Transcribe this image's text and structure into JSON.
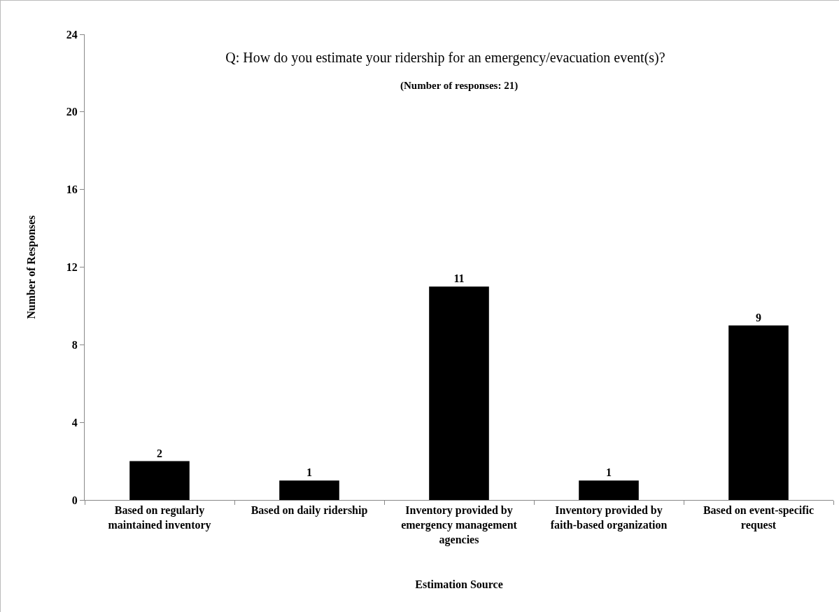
{
  "chart_data": {
    "type": "bar",
    "title": "Q: How do you estimate your ridership for an emergency/evacuation event(s)?",
    "subtitle": "(Number of responses: 21)",
    "xlabel": "Estimation Source",
    "ylabel": "Number of Responses",
    "categories": [
      "Based on regularly maintained inventory",
      "Based on daily ridership",
      "Inventory provided by emergency management agencies",
      "Inventory provided by faith-based organization",
      "Based on event-specific request"
    ],
    "values": [
      2,
      1,
      11,
      1,
      9
    ],
    "color": "#000000",
    "ylim": [
      0,
      24
    ],
    "yticks": [
      0,
      4,
      8,
      12,
      16,
      20,
      24
    ],
    "grid": false,
    "data_labels": true
  }
}
